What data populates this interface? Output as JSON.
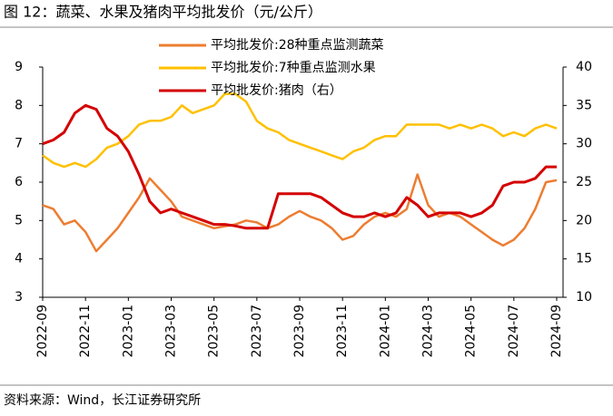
{
  "chart_data": {
    "type": "line",
    "title": "图 12：蔬菜、水果及猪肉平均批发价（元/公斤）",
    "source": "资料来源：Wind，长江证券研究所",
    "categories": [
      "2022-09",
      null,
      null,
      null,
      "2022-11",
      null,
      null,
      null,
      "2023-01",
      null,
      null,
      null,
      "2023-03",
      null,
      null,
      null,
      "2023-05",
      null,
      null,
      null,
      "2023-07",
      null,
      null,
      null,
      "2023-09",
      null,
      null,
      null,
      "2023-11",
      null,
      null,
      null,
      "2024-01",
      null,
      null,
      null,
      "2024-03",
      null,
      null,
      null,
      "2024-05",
      null,
      null,
      null,
      "2024-07",
      null,
      null,
      null,
      "2024-09"
    ],
    "series": [
      {
        "name": "平均批发价:28种重点监测蔬菜",
        "color": "#ed7d31",
        "axis": "y",
        "values": [
          5.4,
          5.3,
          4.9,
          5.0,
          4.7,
          4.2,
          4.5,
          4.8,
          5.2,
          5.6,
          6.1,
          5.8,
          5.5,
          5.1,
          5.0,
          4.9,
          4.8,
          4.85,
          4.9,
          5.0,
          4.95,
          4.8,
          4.9,
          5.1,
          5.25,
          5.1,
          5.0,
          4.8,
          4.5,
          4.6,
          4.9,
          5.1,
          5.2,
          5.1,
          5.3,
          6.2,
          5.4,
          5.1,
          5.2,
          5.1,
          4.9,
          4.7,
          4.5,
          4.35,
          4.5,
          4.8,
          5.3,
          6.0,
          6.05
        ]
      },
      {
        "name": "平均批发价:7种重点监测水果",
        "color": "#ffc000",
        "axis": "y",
        "values": [
          6.7,
          6.5,
          6.4,
          6.5,
          6.4,
          6.6,
          6.9,
          7.0,
          7.2,
          7.5,
          7.6,
          7.6,
          7.7,
          8.0,
          7.8,
          7.9,
          8.0,
          8.3,
          8.3,
          8.1,
          7.6,
          7.4,
          7.3,
          7.1,
          7.0,
          6.9,
          6.8,
          6.7,
          6.6,
          6.8,
          6.9,
          7.1,
          7.2,
          7.2,
          7.5,
          7.5,
          7.5,
          7.5,
          7.4,
          7.5,
          7.4,
          7.5,
          7.4,
          7.2,
          7.3,
          7.2,
          7.4,
          7.5,
          7.4
        ]
      },
      {
        "name": "平均批发价:猪肉（右）",
        "color": "#d40000",
        "axis": "y2",
        "values": [
          30,
          30.5,
          31.5,
          34,
          35,
          34.5,
          32,
          31,
          29,
          26,
          22.5,
          21,
          21.5,
          21,
          20.5,
          20,
          19.5,
          19.5,
          19.3,
          19,
          19,
          19,
          23.5,
          23.5,
          23.5,
          23.5,
          23,
          22,
          21,
          20.5,
          20.5,
          21,
          20.5,
          21,
          23,
          22,
          20.5,
          21,
          21,
          21,
          20.5,
          21,
          22,
          24.5,
          25,
          25,
          25.5,
          27,
          27
        ]
      }
    ],
    "ylim": [
      3,
      9
    ],
    "yticks": [
      3,
      4,
      5,
      6,
      7,
      8,
      9
    ],
    "y2lim": [
      10,
      40
    ],
    "y2ticks": [
      10,
      15,
      20,
      25,
      30,
      35,
      40
    ]
  }
}
